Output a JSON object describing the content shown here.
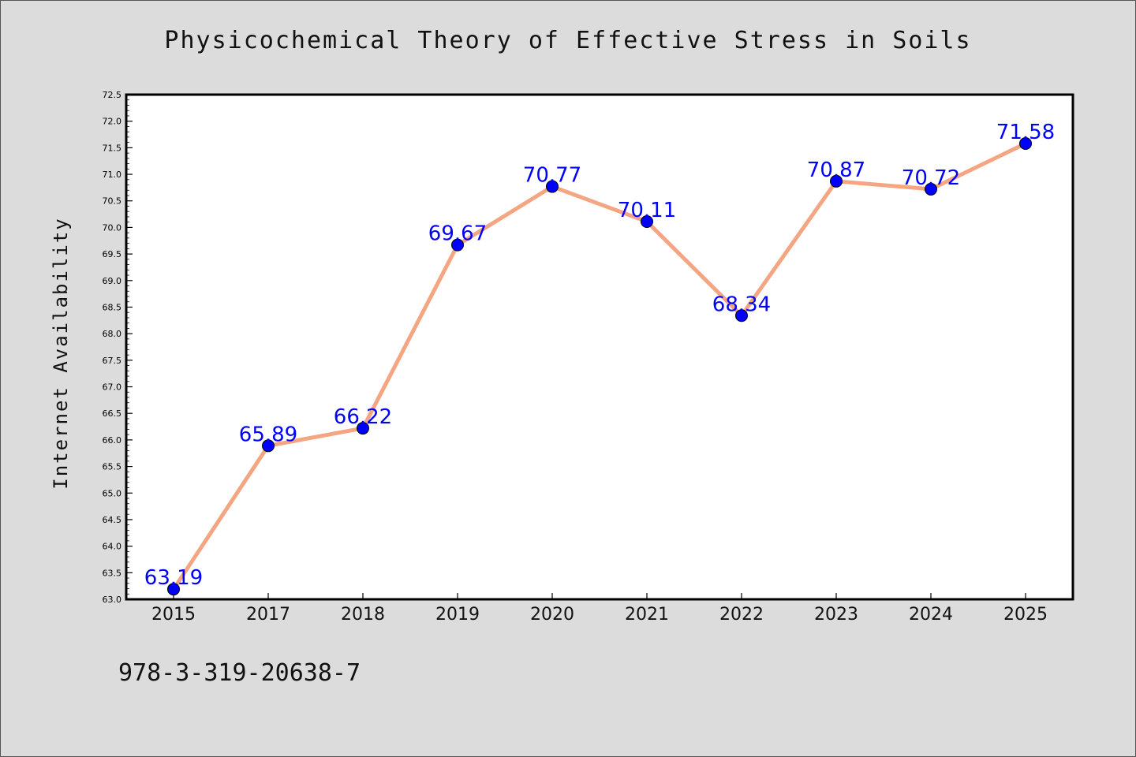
{
  "chart_data": {
    "type": "line",
    "title": "Physicochemical Theory of Effective Stress in Soils",
    "ylabel": "Internet Availability",
    "xlabel": "",
    "categories": [
      "2015",
      "2017",
      "2018",
      "2019",
      "2020",
      "2021",
      "2022",
      "2023",
      "2024",
      "2025"
    ],
    "series": [
      {
        "values": [
          63.19,
          65.89,
          66.22,
          69.67,
          70.77,
          70.11,
          68.34,
          70.87,
          70.72,
          71.58
        ],
        "data_labels": [
          "63.19",
          "65.89",
          "66.22",
          "69.67",
          "70.77",
          "70.11",
          "68.34",
          "70.87",
          "70.72",
          "71.58"
        ]
      }
    ],
    "ylim": [
      63.0,
      72.5
    ],
    "yticks": [
      "63.0",
      "63.5",
      "64.0",
      "64.5",
      "65.0",
      "65.5",
      "66.0",
      "66.5",
      "67.0",
      "67.5",
      "68.0",
      "68.5",
      "69.0",
      "69.5",
      "70.0",
      "70.5",
      "71.0",
      "71.5",
      "72.0",
      "72.5"
    ],
    "grid": false,
    "colors": {
      "line": "#f4a582",
      "marker": "#0000ff",
      "marker_edge": "#000000",
      "label": "#0000ff",
      "background": "#dcdcdc",
      "plot_background": "#ffffff"
    }
  },
  "footer": {
    "code": "978-3-319-20638-7"
  }
}
